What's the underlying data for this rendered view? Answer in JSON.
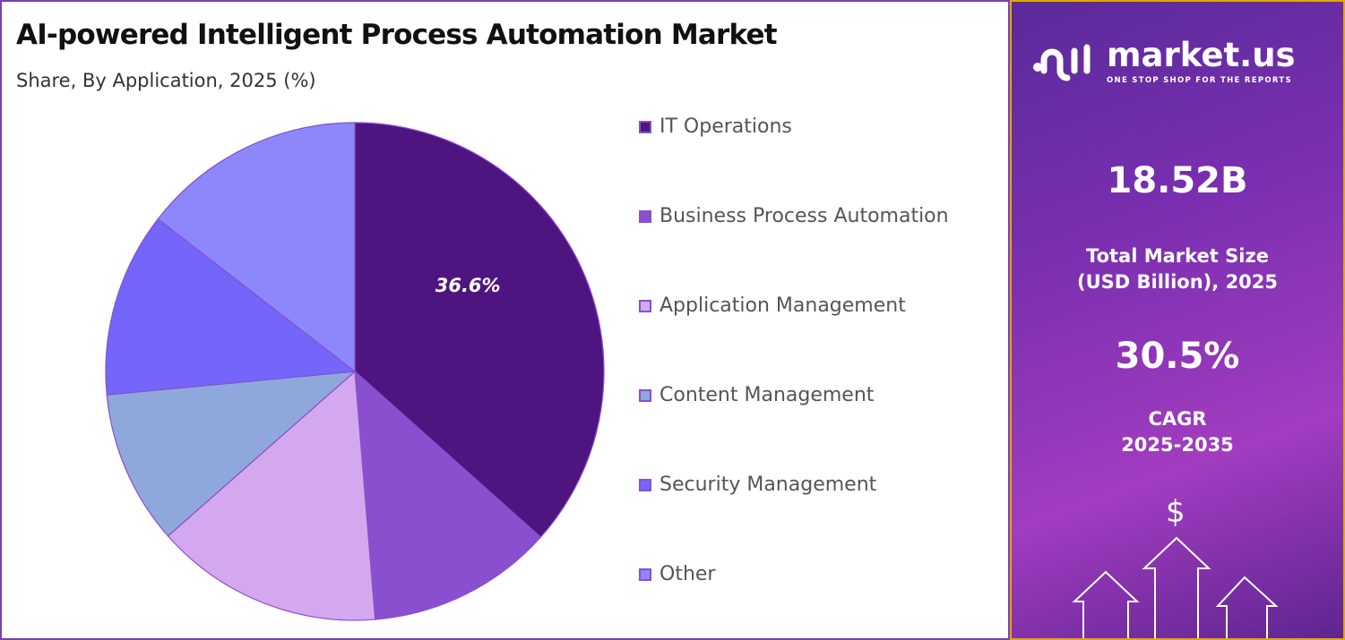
{
  "title": "AI-powered Intelligent Process Automation Market",
  "subtitle": "Share, By Application, 2025 (%)",
  "chart_data": {
    "type": "pie",
    "categories": [
      "IT Operations",
      "Business Process Automation",
      "Application Management",
      "Content Management",
      "Security Management",
      "Other"
    ],
    "values": [
      36.6,
      12.1,
      14.8,
      10.0,
      12.0,
      14.5
    ],
    "colors": [
      "#4e1580",
      "#8a4fcf",
      "#d4a8ee",
      "#8fa8dc",
      "#7466fa",
      "#8c88fb"
    ],
    "data_labels": [
      "36.6%",
      "",
      "",
      "",
      "",
      ""
    ],
    "start_angle": "top, clockwise",
    "legend_position": "right"
  },
  "sidebar": {
    "brand": "market.us",
    "tagline": "ONE STOP SHOP FOR THE REPORTS",
    "market_size": "18.52B",
    "market_size_label_1": "Total Market Size",
    "market_size_label_2": "(USD Billion), 2025",
    "cagr": "30.5%",
    "cagr_label_1": "CAGR",
    "cagr_label_2": "2025-2035",
    "dollar": "$"
  }
}
